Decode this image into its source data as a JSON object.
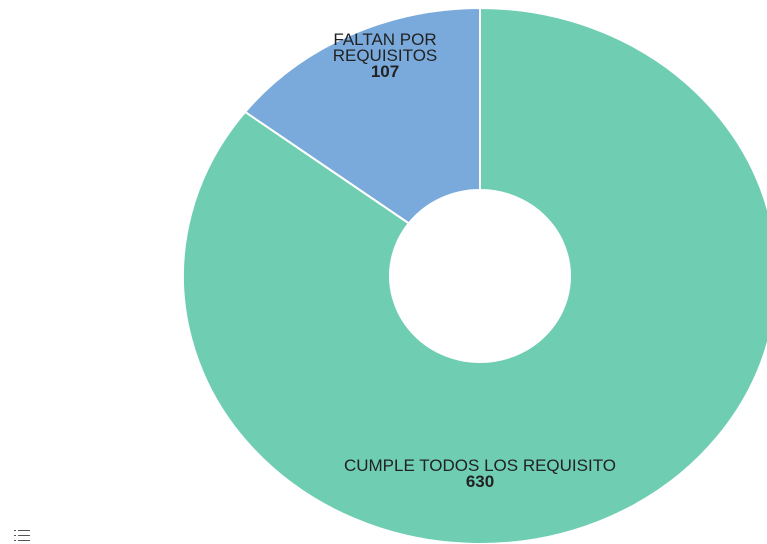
{
  "chart_data": {
    "type": "donut",
    "categories": [
      "CUMPLE TODOS LOS REQUISITO",
      "FALTAN POR REQUISITOS"
    ],
    "values": [
      630,
      107
    ],
    "colors": [
      "#6fcdb2",
      "#7aaadc"
    ]
  }
}
